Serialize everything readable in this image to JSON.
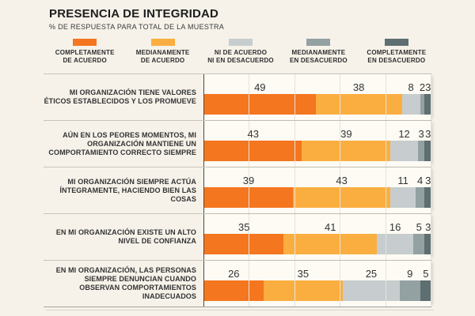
{
  "header": {
    "title": "PRESENCIA DE INTEGRIDAD",
    "subtitle": "% DE RESPUESTA PARA TOTAL DE LA MUESTRA"
  },
  "legend": {
    "items": [
      {
        "label_line1": "COMPLETAMENTE",
        "label_line2": "DE ACUERDO",
        "color": "#F4761F"
      },
      {
        "label_line1": "MEDIANAMENTE",
        "label_line2": "DE ACUERDO",
        "color": "#FBAE40"
      },
      {
        "label_line1": "NI DE ACUERDO",
        "label_line2": "NI EN DESACUERDO",
        "color": "#C7CDCE"
      },
      {
        "label_line1": "MEDIANAMENTE",
        "label_line2": "EN DESACUERDO",
        "color": "#93A1A2"
      },
      {
        "label_line1": "COMPLETAMENTE",
        "label_line2": "EN DESACUERDO",
        "color": "#5E6F71"
      }
    ]
  },
  "chart_data": {
    "type": "bar",
    "orientation": "horizontal",
    "stacked": true,
    "unit": "percent of responses",
    "title": "PRESENCIA DE INTEGRIDAD",
    "subtitle": "% DE RESPUESTA PARA TOTAL DE LA MUESTRA",
    "xlim": [
      0,
      100
    ],
    "gridlines_every": 20,
    "legend_position": "top",
    "categories": [
      "MI ORGANIZACIÓN TIENE VALORES ÉTICOS ESTABLECIDOS Y LOS PROMUEVE",
      "AÚN EN LOS PEORES MOMENTOS, MI ORGANIZACIÓN MANTIENE UN COMPORTAMIENTO CORRECTO SIEMPRE",
      "MI ORGANIZACIÓN SIEMPRE ACTÚA ÍNTEGRAMENTE, HACIENDO BIEN LAS COSAS",
      "EN MI ORGANIZACIÓN EXISTE UN ALTO NIVEL DE CONFIANZA",
      "EN MI ORGANIZACIÓN, LAS PERSONAS SIEMPRE DENUNCIAN CUANDO OBSERVAN COMPORTAMIENTOS INADECUADOS"
    ],
    "series": [
      {
        "name": "COMPLETAMENTE DE ACUERDO",
        "color": "#F4761F",
        "values": [
          49,
          43,
          39,
          35,
          26
        ]
      },
      {
        "name": "MEDIANAMENTE DE ACUERDO",
        "color": "#FBAE40",
        "values": [
          38,
          39,
          43,
          41,
          35
        ]
      },
      {
        "name": "NI DE ACUERDO NI EN DESACUERDO",
        "color": "#C7CDCE",
        "values": [
          8,
          12,
          11,
          16,
          25
        ]
      },
      {
        "name": "MEDIANAMENTE EN DESACUERDO",
        "color": "#93A1A2",
        "values": [
          2,
          3,
          4,
          5,
          9
        ]
      },
      {
        "name": "COMPLETAMENTE EN DESACUERDO",
        "color": "#5E6F71",
        "values": [
          3,
          3,
          3,
          3,
          5
        ]
      }
    ]
  },
  "colors": {
    "page_background": "#F6F2EA",
    "plot_background": "#FDFBF4",
    "separator": "#C9C5BC",
    "gridline": "#E7E3DA",
    "axis_line": "#4A4A4A",
    "text": "#333333"
  }
}
